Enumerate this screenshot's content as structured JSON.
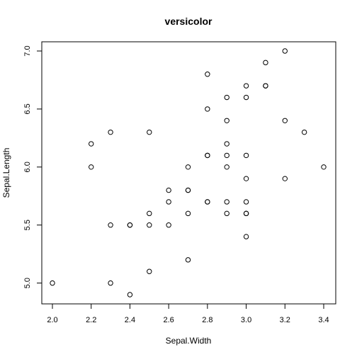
{
  "chart_data": {
    "type": "scatter",
    "title": "versicolor",
    "xlabel": "Sepal.Width",
    "ylabel": "Sepal.Length",
    "xlim": [
      2.0,
      3.4
    ],
    "ylim": [
      4.9,
      7.0
    ],
    "xticks": [
      2.0,
      2.2,
      2.4,
      2.6,
      2.8,
      3.0,
      3.2,
      3.4
    ],
    "yticks": [
      5.0,
      5.5,
      6.0,
      6.5,
      7.0
    ],
    "grid": false,
    "legend": "none",
    "points": [
      {
        "x": 3.2,
        "y": 7.0
      },
      {
        "x": 3.2,
        "y": 6.4
      },
      {
        "x": 3.1,
        "y": 6.9
      },
      {
        "x": 2.3,
        "y": 5.5
      },
      {
        "x": 2.8,
        "y": 6.5
      },
      {
        "x": 2.8,
        "y": 5.7
      },
      {
        "x": 3.3,
        "y": 6.3
      },
      {
        "x": 2.4,
        "y": 4.9
      },
      {
        "x": 2.9,
        "y": 6.6
      },
      {
        "x": 2.7,
        "y": 5.2
      },
      {
        "x": 2.0,
        "y": 5.0
      },
      {
        "x": 3.0,
        "y": 5.9
      },
      {
        "x": 2.2,
        "y": 6.0
      },
      {
        "x": 2.9,
        "y": 6.1
      },
      {
        "x": 2.9,
        "y": 5.6
      },
      {
        "x": 3.1,
        "y": 6.7
      },
      {
        "x": 3.0,
        "y": 5.6
      },
      {
        "x": 2.7,
        "y": 5.8
      },
      {
        "x": 2.2,
        "y": 6.2
      },
      {
        "x": 2.5,
        "y": 5.6
      },
      {
        "x": 3.2,
        "y": 5.9
      },
      {
        "x": 2.8,
        "y": 6.1
      },
      {
        "x": 2.5,
        "y": 6.3
      },
      {
        "x": 2.8,
        "y": 6.1
      },
      {
        "x": 2.9,
        "y": 6.4
      },
      {
        "x": 3.0,
        "y": 6.6
      },
      {
        "x": 2.8,
        "y": 6.8
      },
      {
        "x": 3.0,
        "y": 6.7
      },
      {
        "x": 2.9,
        "y": 6.0
      },
      {
        "x": 2.6,
        "y": 5.7
      },
      {
        "x": 2.4,
        "y": 5.5
      },
      {
        "x": 2.4,
        "y": 5.5
      },
      {
        "x": 2.7,
        "y": 5.8
      },
      {
        "x": 2.7,
        "y": 6.0
      },
      {
        "x": 3.0,
        "y": 5.4
      },
      {
        "x": 3.4,
        "y": 6.0
      },
      {
        "x": 3.1,
        "y": 6.7
      },
      {
        "x": 2.3,
        "y": 6.3
      },
      {
        "x": 3.0,
        "y": 5.6
      },
      {
        "x": 2.5,
        "y": 5.5
      },
      {
        "x": 2.6,
        "y": 5.5
      },
      {
        "x": 3.0,
        "y": 6.1
      },
      {
        "x": 2.6,
        "y": 5.8
      },
      {
        "x": 2.3,
        "y": 5.0
      },
      {
        "x": 2.7,
        "y": 5.6
      },
      {
        "x": 3.0,
        "y": 5.7
      },
      {
        "x": 2.9,
        "y": 5.7
      },
      {
        "x": 2.9,
        "y": 6.2
      },
      {
        "x": 2.5,
        "y": 5.1
      },
      {
        "x": 2.8,
        "y": 5.7
      }
    ]
  }
}
